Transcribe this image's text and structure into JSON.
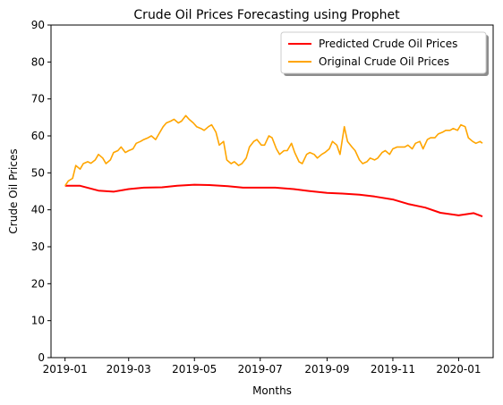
{
  "chart_data": {
    "type": "line",
    "title": "Crude Oil Prices Forecasting using Prophet",
    "xlabel": "Months",
    "ylabel": "Crude Oil Prices",
    "xlim": [
      "2018-12-19",
      "2020-02-02"
    ],
    "ylim": [
      0,
      90
    ],
    "yticks": [
      0,
      10,
      20,
      30,
      40,
      50,
      60,
      70,
      80,
      90
    ],
    "xticks": [
      "2019-01-01",
      "2019-03-01",
      "2019-05-01",
      "2019-07-01",
      "2019-09-01",
      "2019-11-01",
      "2020-01-01"
    ],
    "xtick_labels": [
      "2019-01",
      "2019-03",
      "2019-05",
      "2019-07",
      "2019-09",
      "2019-11",
      "2020-01"
    ],
    "grid": false,
    "legend_position": "top-right",
    "series": [
      {
        "name": "Predicted Crude Oil Prices",
        "color": "#ff0000",
        "x": [
          "2019-01-01",
          "2019-01-15",
          "2019-02-01",
          "2019-02-15",
          "2019-03-01",
          "2019-03-15",
          "2019-04-01",
          "2019-04-15",
          "2019-05-01",
          "2019-05-15",
          "2019-06-01",
          "2019-06-15",
          "2019-07-01",
          "2019-07-15",
          "2019-08-01",
          "2019-08-15",
          "2019-09-01",
          "2019-09-15",
          "2019-10-01",
          "2019-10-15",
          "2019-11-01",
          "2019-11-15",
          "2019-12-01",
          "2019-12-15",
          "2020-01-01",
          "2020-01-15",
          "2020-01-23"
        ],
        "y": [
          46.5,
          46.5,
          45.2,
          44.9,
          45.6,
          46.0,
          46.1,
          46.5,
          46.8,
          46.7,
          46.4,
          46.0,
          46.0,
          46.0,
          45.6,
          45.1,
          44.6,
          44.4,
          44.1,
          43.6,
          42.8,
          41.6,
          40.6,
          39.2,
          38.5,
          39.1,
          38.2
        ]
      },
      {
        "name": "Original Crude Oil Prices",
        "color": "#ffa500",
        "x": [
          "2019-01-01",
          "2019-01-04",
          "2019-01-08",
          "2019-01-11",
          "2019-01-15",
          "2019-01-18",
          "2019-01-22",
          "2019-01-25",
          "2019-01-29",
          "2019-02-01",
          "2019-02-05",
          "2019-02-08",
          "2019-02-12",
          "2019-02-15",
          "2019-02-19",
          "2019-02-22",
          "2019-02-26",
          "2019-03-01",
          "2019-03-05",
          "2019-03-08",
          "2019-03-12",
          "2019-03-15",
          "2019-03-19",
          "2019-03-22",
          "2019-03-26",
          "2019-03-29",
          "2019-04-02",
          "2019-04-05",
          "2019-04-09",
          "2019-04-12",
          "2019-04-16",
          "2019-04-19",
          "2019-04-23",
          "2019-04-26",
          "2019-04-30",
          "2019-05-03",
          "2019-05-07",
          "2019-05-10",
          "2019-05-14",
          "2019-05-17",
          "2019-05-21",
          "2019-05-24",
          "2019-05-28",
          "2019-05-31",
          "2019-06-04",
          "2019-06-07",
          "2019-06-11",
          "2019-06-14",
          "2019-06-18",
          "2019-06-21",
          "2019-06-25",
          "2019-06-28",
          "2019-07-02",
          "2019-07-05",
          "2019-07-09",
          "2019-07-12",
          "2019-07-16",
          "2019-07-19",
          "2019-07-23",
          "2019-07-26",
          "2019-07-30",
          "2019-08-02",
          "2019-08-06",
          "2019-08-09",
          "2019-08-13",
          "2019-08-16",
          "2019-08-20",
          "2019-08-23",
          "2019-08-27",
          "2019-08-30",
          "2019-09-03",
          "2019-09-06",
          "2019-09-10",
          "2019-09-13",
          "2019-09-17",
          "2019-09-20",
          "2019-09-24",
          "2019-09-27",
          "2019-10-01",
          "2019-10-04",
          "2019-10-08",
          "2019-10-11",
          "2019-10-15",
          "2019-10-18",
          "2019-10-22",
          "2019-10-25",
          "2019-10-29",
          "2019-11-01",
          "2019-11-05",
          "2019-11-08",
          "2019-11-12",
          "2019-11-15",
          "2019-11-19",
          "2019-11-22",
          "2019-11-26",
          "2019-11-29",
          "2019-12-03",
          "2019-12-06",
          "2019-12-10",
          "2019-12-13",
          "2019-12-17",
          "2019-12-20",
          "2019-12-24",
          "2019-12-27",
          "2019-12-31",
          "2020-01-03",
          "2020-01-07",
          "2020-01-10",
          "2020-01-14",
          "2020-01-17",
          "2020-01-21",
          "2020-01-23"
        ],
        "y": [
          46.5,
          47.8,
          48.5,
          52.0,
          51.0,
          52.5,
          53.0,
          52.6,
          53.5,
          55.0,
          54.0,
          52.5,
          53.5,
          55.5,
          56.0,
          57.0,
          55.5,
          56.0,
          56.5,
          58.0,
          58.5,
          59.0,
          59.5,
          60.0,
          59.0,
          60.5,
          62.5,
          63.5,
          64.0,
          64.5,
          63.5,
          64.0,
          65.5,
          64.5,
          63.5,
          62.5,
          62.0,
          61.5,
          62.5,
          63.0,
          61.0,
          57.5,
          58.5,
          53.5,
          52.5,
          53.0,
          52.0,
          52.5,
          54.0,
          57.0,
          58.5,
          59.0,
          57.5,
          57.5,
          60.0,
          59.5,
          56.5,
          55.0,
          56.0,
          56.0,
          58.0,
          55.5,
          53.0,
          52.5,
          55.0,
          55.5,
          55.0,
          54.0,
          55.0,
          55.5,
          56.5,
          58.5,
          57.5,
          55.0,
          62.5,
          58.5,
          57.0,
          56.0,
          53.5,
          52.5,
          53.0,
          54.0,
          53.5,
          54.0,
          55.5,
          56.0,
          55.0,
          56.5,
          57.0,
          57.0,
          57.0,
          57.5,
          56.5,
          58.0,
          58.5,
          56.5,
          59.0,
          59.5,
          59.5,
          60.5,
          61.0,
          61.5,
          61.5,
          62.0,
          61.5,
          63.0,
          62.5,
          59.5,
          58.5,
          58.0,
          58.5,
          58.0
        ]
      }
    ]
  }
}
